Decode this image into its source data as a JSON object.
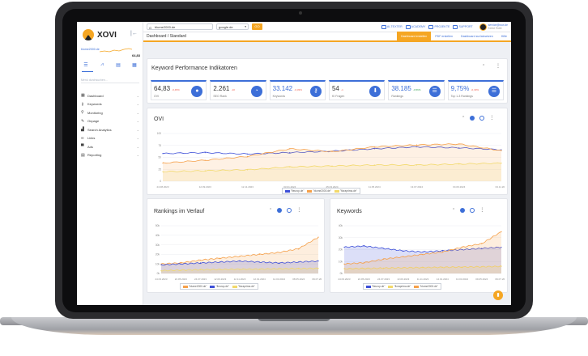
{
  "sidebar": {
    "logo_text": "XOVI",
    "project_name": "blume2000.de",
    "project_value": "64,83",
    "search_placeholder": "Menü durchsuchen...",
    "nav": [
      {
        "label": "Dashboard",
        "icon": "dashboard-icon"
      },
      {
        "label": "Keywords",
        "icon": "key-icon"
      },
      {
        "label": "Monitoring",
        "icon": "search-icon"
      },
      {
        "label": "Onpage",
        "icon": "wrench-icon"
      },
      {
        "label": "Search Analytics",
        "icon": "bar-chart-icon"
      },
      {
        "label": "Links",
        "icon": "link-icon"
      },
      {
        "label": "Ads",
        "icon": "ads-icon"
      },
      {
        "label": "Reporting",
        "icon": "document-icon"
      }
    ]
  },
  "topbar": {
    "domain": "blume2000.de",
    "engine": "google.de",
    "go_label": "GO",
    "links": [
      "AI-TEXTER",
      "ACADEMY",
      "PROJEKTE",
      "SUPPORT"
    ],
    "user_email": "service@xovi.de",
    "user_sub": "Keine Rolle"
  },
  "subbar": {
    "breadcrumb": "Dashboard / Standard",
    "actions": [
      "Dashboard erstellen",
      "PDF erstellen",
      "Dashboard zurücksetzen",
      "Hilfe"
    ]
  },
  "kpi_card": {
    "title": "Keyword Performance Indikatoren",
    "items": [
      {
        "value": "64,83",
        "change": "-0,45%",
        "label": "OVI",
        "icon": "drop-icon"
      },
      {
        "value": "2.261",
        "change": "-10",
        "label": "SEO Rank",
        "icon": "gauge-icon"
      },
      {
        "value": "33.142",
        "change": "-0,33%",
        "label": "Keywords",
        "icon": "key-icon"
      },
      {
        "value": "54",
        "change": "-1",
        "label": "KI Fragen",
        "icon": "pin-icon"
      },
      {
        "value": "38.185",
        "change": "-0,56%",
        "label": "Rankings",
        "icon": "list-icon"
      },
      {
        "value": "9,75%",
        "change": "-0,33%",
        "label": "Top 1-3 Rankings",
        "icon": "list-icon"
      }
    ]
  },
  "ovi_card": {
    "title": "OVI"
  },
  "rankings_card": {
    "title": "Rankings im Verlauf"
  },
  "keywords_card": {
    "title": "Keywords"
  },
  "colors": {
    "blue": "#3d4fd8",
    "orange": "#f5a04a",
    "yellow": "#f2d96b",
    "accent": "#f5a623"
  },
  "chart_data": [
    {
      "type": "line",
      "title": "OVI",
      "x": [
        "24.08.2023",
        "12.09.2023",
        "12.11.2023",
        "03.01.2024",
        "25.03.2024",
        "11.05.2024",
        "13.07.2024",
        "04.09.2024",
        "04.11.2024"
      ],
      "ylim": [
        0,
        100
      ],
      "yticks": [
        0,
        25,
        50,
        75,
        100
      ],
      "series": [
        {
          "name": "fleurop.de",
          "color": "#3d4fd8",
          "values": [
            58,
            60,
            57,
            60,
            63,
            68,
            72,
            70,
            66
          ]
        },
        {
          "name": "blume2000.de",
          "color": "#f5a04a",
          "values": [
            38,
            44,
            52,
            68,
            62,
            72,
            76,
            78,
            64
          ]
        },
        {
          "name": "floraprima.de",
          "color": "#f2d96b",
          "values": [
            20,
            22,
            24,
            30,
            32,
            34,
            34,
            36,
            38
          ]
        }
      ]
    },
    {
      "type": "area",
      "title": "Rankings im Verlauf",
      "x": [
        "24.03.2023",
        "24.05.2023",
        "24.07.2023",
        "12.09.2023",
        "12.11.2023",
        "12.01.2024",
        "12.03.2024",
        "08.05.2024",
        "09.07.2024"
      ],
      "ylim": [
        0,
        50000
      ],
      "yticks": [
        "0k",
        "10k",
        "20k",
        "30k",
        "40k",
        "50k"
      ],
      "series": [
        {
          "name": "blume2000.de",
          "color": "#f5a04a",
          "values": [
            10000,
            11000,
            14000,
            16000,
            18000,
            20000,
            22000,
            26000,
            38000
          ]
        },
        {
          "name": "fleurop.de",
          "color": "#3d4fd8",
          "values": [
            9000,
            10000,
            11000,
            12000,
            13000,
            12000,
            11000,
            12000,
            13000
          ]
        },
        {
          "name": "floraprima.de",
          "color": "#f2d96b",
          "values": [
            3000,
            3500,
            4000,
            4200,
            4500,
            4600,
            5000,
            5200,
            5400
          ]
        }
      ]
    },
    {
      "type": "area",
      "title": "Keywords",
      "x": [
        "24.03.2023",
        "24.05.2023",
        "24.07.2023",
        "13.09.2023",
        "11.11.2023",
        "14.01.2024",
        "13.03.2024",
        "09.05.2024",
        "09.07.2024"
      ],
      "ylim": [
        0,
        40000
      ],
      "yticks": [
        "0k",
        "10k",
        "20k",
        "30k",
        "40k"
      ],
      "series": [
        {
          "name": "fleurop.de",
          "color": "#3d4fd8",
          "values": [
            22000,
            23000,
            21000,
            19000,
            18000,
            19000,
            20000,
            21000,
            22000
          ]
        },
        {
          "name": "floraprima.de",
          "color": "#f2d96b",
          "values": [
            4000,
            4200,
            4500,
            4800,
            5000,
            5200,
            5400,
            5600,
            6000
          ]
        },
        {
          "name": "blume2000.de",
          "color": "#f5a04a",
          "values": [
            8000,
            9000,
            12000,
            14000,
            16000,
            18000,
            22000,
            25000,
            35000
          ]
        }
      ]
    }
  ]
}
